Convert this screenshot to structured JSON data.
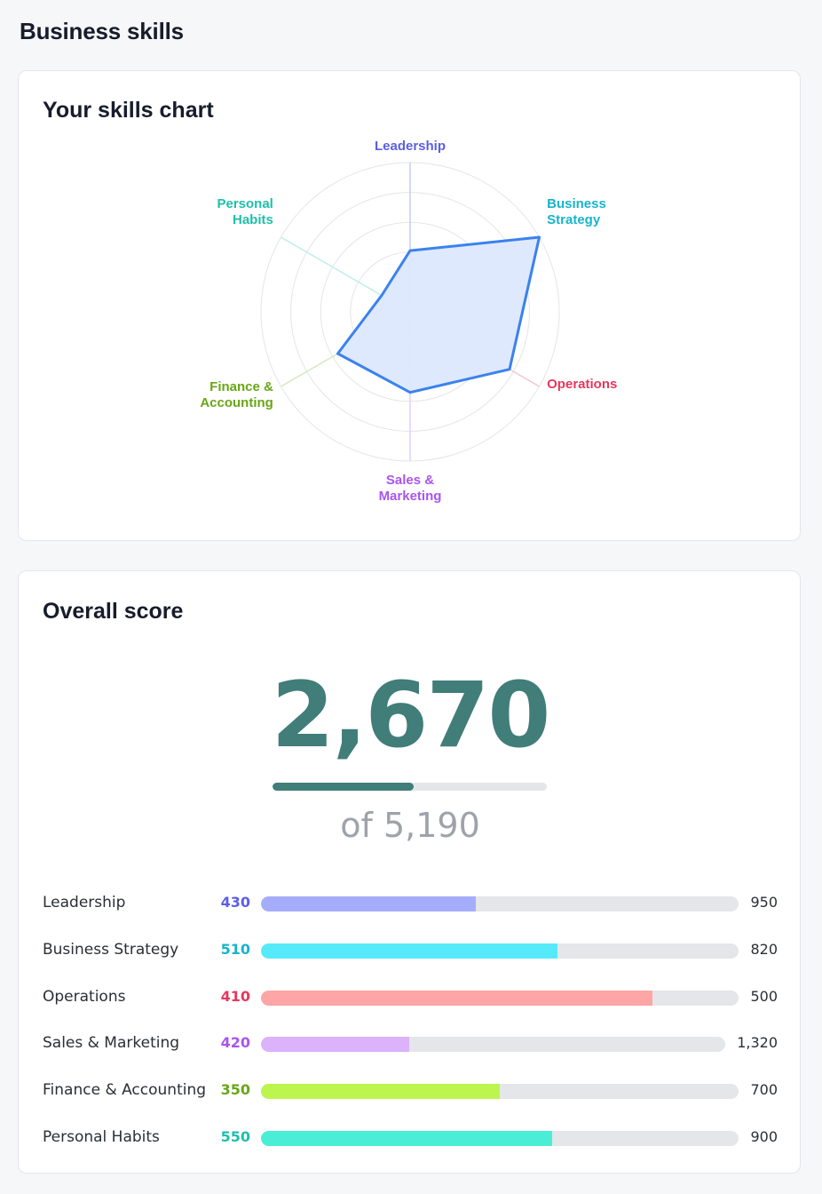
{
  "page": {
    "title": "Business skills"
  },
  "skills_chart": {
    "title": "Your skills chart",
    "axes": [
      {
        "lines": [
          "Leadership"
        ],
        "color": "#5b5fe3",
        "axis_color": "#c9cbf6",
        "value": 0.41
      },
      {
        "lines": [
          "Business",
          "Strategy"
        ],
        "color": "#17b4cc",
        "axis_color": "#b5e7f1",
        "value": 1.0
      },
      {
        "lines": [
          "Operations"
        ],
        "color": "#e8365d",
        "axis_color": "#f4c6d0",
        "value": 0.77
      },
      {
        "lines": [
          "Sales &",
          "Marketing"
        ],
        "color": "#a955f0",
        "axis_color": "#e2cdfa",
        "value": 0.54
      },
      {
        "lines": [
          "Finance &",
          "Accounting"
        ],
        "color": "#68a616",
        "axis_color": "#d4e8bd",
        "value": 0.56
      },
      {
        "lines": [
          "Personal",
          "Habits"
        ],
        "color": "#1fbfa9",
        "axis_color": "#bdeee7",
        "value": 0.22
      }
    ],
    "rings": 5,
    "area_fill": "#dde8fd",
    "area_stroke": "#3a82ee"
  },
  "overall": {
    "title": "Overall score",
    "score": "2,670",
    "of_text": "of 5,190",
    "progress": 0.514,
    "accent": "#417d79"
  },
  "skills": [
    {
      "name": "Leadership",
      "score": "430",
      "max": "950",
      "progress": 0.45,
      "score_color": "#5b5fe3",
      "bar_color": "#a5adfb"
    },
    {
      "name": "Business Strategy",
      "score": "510",
      "max": "820",
      "progress": 0.62,
      "score_color": "#17b4cc",
      "bar_color": "#55eafa"
    },
    {
      "name": "Operations",
      "score": "410",
      "max": "500",
      "progress": 0.82,
      "score_color": "#e8365d",
      "bar_color": "#fea5a5"
    },
    {
      "name": "Sales & Marketing",
      "score": "420",
      "max": "1,320",
      "progress": 0.32,
      "score_color": "#a955f0",
      "bar_color": "#dcb2fb"
    },
    {
      "name": "Finance & Accounting",
      "score": "350",
      "max": "700",
      "progress": 0.5,
      "score_color": "#68a616",
      "bar_color": "#bcf54d"
    },
    {
      "name": "Personal Habits",
      "score": "550",
      "max": "900",
      "progress": 0.61,
      "score_color": "#1fbfa9",
      "bar_color": "#4aeed7"
    }
  ]
}
